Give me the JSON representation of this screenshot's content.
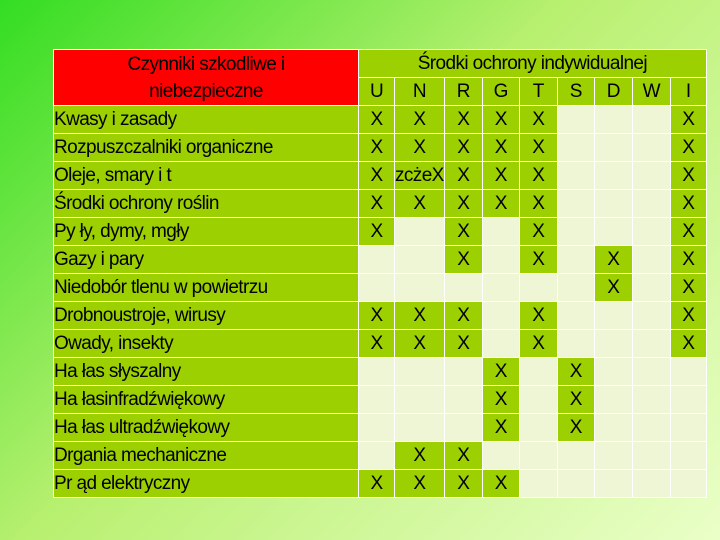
{
  "table": {
    "header_hazards_line1": "Czynniki szkodliwe i",
    "header_hazards_line2": "niebezpieczne",
    "header_ppe": "Środki ochrony indywidualnej",
    "codes": [
      "U",
      "N",
      "R",
      "G",
      "T",
      "S",
      "D",
      "W",
      "I"
    ],
    "rows": [
      {
        "label": "Kwasy i zasady",
        "cells": [
          "X",
          "X",
          "X",
          "X",
          "X",
          "",
          "",
          "",
          "X"
        ]
      },
      {
        "label": "Rozpuszczalniki organiczne",
        "cells": [
          "X",
          "X",
          "X",
          "X",
          "X",
          "",
          "",
          "",
          "X"
        ]
      },
      {
        "label": "Oleje, smary i t",
        "cells": [
          "X",
          "zcżeX",
          "X",
          "X",
          "X",
          "",
          "",
          "",
          "X"
        ]
      },
      {
        "label": "Środki ochrony roślin",
        "cells": [
          "X",
          "X",
          "X",
          "X",
          "X",
          "",
          "",
          "",
          "X"
        ]
      },
      {
        "label": "Py      ły, dymy, mgły",
        "cells": [
          "X",
          "",
          "X",
          "",
          "X",
          "",
          "",
          "",
          "X"
        ]
      },
      {
        "label": "Gazy i pary",
        "cells": [
          "",
          "",
          "X",
          "",
          "X",
          "",
          "X",
          "",
          "X"
        ]
      },
      {
        "label": "Niedobór tlenu w powietrzu",
        "cells": [
          "",
          "",
          "",
          "",
          "",
          "",
          "X",
          "",
          "X"
        ]
      },
      {
        "label": "Drobnoustroje, wirusy",
        "cells": [
          "X",
          "X",
          "X",
          "",
          "X",
          "",
          "",
          "",
          "X"
        ]
      },
      {
        "label": "Owady, insekty",
        "cells": [
          "X",
          "X",
          "X",
          "",
          "X",
          "",
          "",
          "",
          "X"
        ]
      },
      {
        "label": "Ha      łas słyszalny",
        "cells": [
          "",
          "",
          "",
          "X",
          "",
          "X",
          "",
          "",
          ""
        ]
      },
      {
        "label": "Ha      łasinfradźwiękowy",
        "cells": [
          "",
          "",
          "",
          "X",
          "",
          "X",
          "",
          "",
          ""
        ]
      },
      {
        "label": "Ha      łas ultradźwiękowy",
        "cells": [
          "",
          "",
          "",
          "X",
          "",
          "X",
          "",
          "",
          ""
        ]
      },
      {
        "label": "Drgania mechaniczne",
        "cells": [
          "",
          "X",
          "X",
          "",
          "",
          "",
          "",
          "",
          ""
        ]
      },
      {
        "label": "Pr      ąd elektryczny",
        "cells": [
          "X",
          "X",
          "X",
          "X",
          "",
          "",
          "",
          "",
          ""
        ]
      }
    ]
  },
  "colors": {
    "header_red": "#ff0000",
    "cell_green": "#9cd000",
    "cell_empty": "#eef6d6"
  }
}
